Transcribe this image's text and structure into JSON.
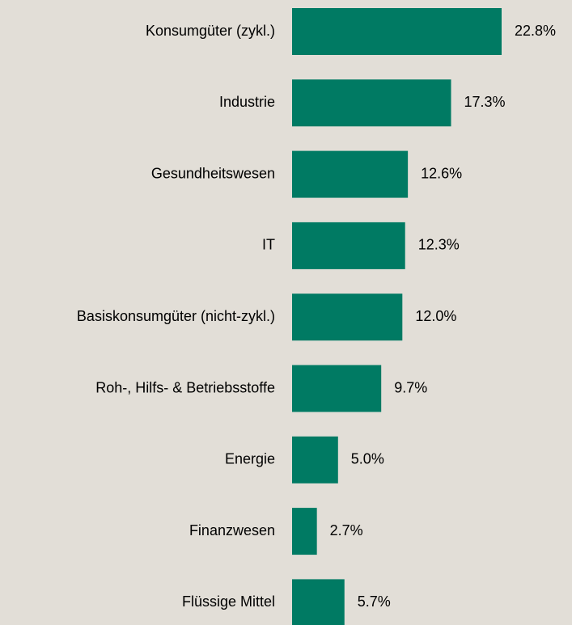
{
  "chart_data": {
    "type": "bar",
    "orientation": "horizontal",
    "categories": [
      "Konsumgüter (zykl.)",
      "Industrie",
      "Gesundheitswesen",
      "IT",
      "Basiskonsumgüter (nicht-zykl.)",
      "Roh-, Hilfs- & Betriebsstoffe",
      "Energie",
      "Finanzwesen",
      "Flüssige Mittel"
    ],
    "values": [
      22.8,
      17.3,
      12.6,
      12.3,
      12.0,
      9.7,
      5.0,
      2.7,
      5.7
    ],
    "value_labels": [
      "22.8%",
      "17.3%",
      "12.6%",
      "12.3%",
      "12.0%",
      "9.7%",
      "5.0%",
      "2.7%",
      "5.7%"
    ],
    "color": "#007a63"
  }
}
